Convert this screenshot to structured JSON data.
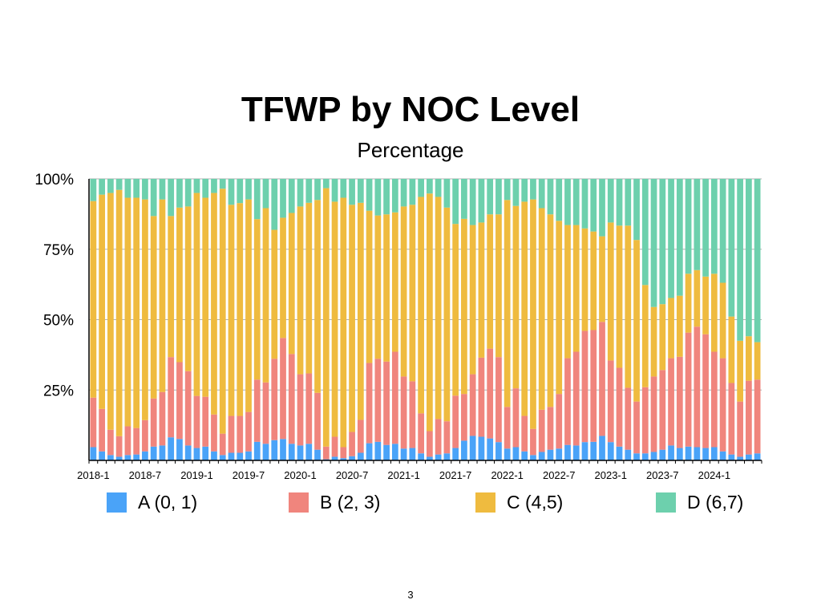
{
  "chart_data": {
    "type": "bar",
    "stacked": true,
    "title": "TFWP by NOC Level",
    "subtitle": "Percentage",
    "xlabel": "",
    "ylabel": "",
    "ylim": [
      0,
      100
    ],
    "y_ticks": [
      "100%",
      "75%",
      "50%",
      "25%"
    ],
    "y_tick_values": [
      100,
      75,
      50,
      25
    ],
    "x_ticks": [
      "2018-1",
      "2018-7",
      "2019-1",
      "2019-7",
      "2020-1",
      "2020-7",
      "2021-1",
      "2021-7",
      "2022-1",
      "2022-7",
      "2023-1",
      "2023-7",
      "2024-1"
    ],
    "x_tick_every": 6,
    "grid": true,
    "legend_position": "bottom",
    "categories": [
      "2018-1",
      "2018-2",
      "2018-3",
      "2018-4",
      "2018-5",
      "2018-6",
      "2018-7",
      "2018-8",
      "2018-9",
      "2018-10",
      "2018-11",
      "2018-12",
      "2019-1",
      "2019-2",
      "2019-3",
      "2019-4",
      "2019-5",
      "2019-6",
      "2019-7",
      "2019-8",
      "2019-9",
      "2019-10",
      "2019-11",
      "2019-12",
      "2020-1",
      "2020-2",
      "2020-3",
      "2020-4",
      "2020-5",
      "2020-6",
      "2020-7",
      "2020-8",
      "2020-9",
      "2020-10",
      "2020-11",
      "2020-12",
      "2021-1",
      "2021-2",
      "2021-3",
      "2021-4",
      "2021-5",
      "2021-6",
      "2021-7",
      "2021-8",
      "2021-9",
      "2021-10",
      "2021-11",
      "2021-12",
      "2022-1",
      "2022-2",
      "2022-3",
      "2022-4",
      "2022-5",
      "2022-6",
      "2022-7",
      "2022-8",
      "2022-9",
      "2022-10",
      "2022-11",
      "2022-12",
      "2023-1",
      "2023-2",
      "2023-3",
      "2023-4",
      "2023-5",
      "2023-6",
      "2023-7",
      "2023-8",
      "2023-9",
      "2023-10",
      "2023-11",
      "2023-12",
      "2024-1",
      "2024-2",
      "2024-3",
      "2024-4",
      "2024-5",
      "2024-6"
    ],
    "series": [
      {
        "name": "A (0, 1)",
        "color": "#4aa3f8",
        "values": [
          4.7,
          3.2,
          1.9,
          1.3,
          1.9,
          2.1,
          3.2,
          4.9,
          5.3,
          8.2,
          7.6,
          5.3,
          4.4,
          4.9,
          3.2,
          1.9,
          2.7,
          2.7,
          3.2,
          6.6,
          5.9,
          7.2,
          7.6,
          5.9,
          5.3,
          5.9,
          3.8,
          0.4,
          1.3,
          0.8,
          1.5,
          2.7,
          6.1,
          6.6,
          5.5,
          5.9,
          4.2,
          4.4,
          2.5,
          1.3,
          2.1,
          2.5,
          4.4,
          7.0,
          8.7,
          8.4,
          7.8,
          6.5,
          4.2,
          4.7,
          3.2,
          1.9,
          3.0,
          3.8,
          4.2,
          5.5,
          5.3,
          6.5,
          6.6,
          8.7,
          6.5,
          4.9,
          3.8,
          2.5,
          2.5,
          3.0,
          3.8,
          5.3,
          4.4,
          4.9,
          4.7,
          4.4,
          4.7,
          3.2,
          2.1,
          1.3,
          2.1,
          2.5
        ]
      },
      {
        "name": "B (2, 3)",
        "color": "#f0857d",
        "values": [
          17.6,
          15.1,
          9.0,
          7.3,
          10.2,
          9.4,
          11.1,
          17.1,
          19.0,
          28.5,
          27.3,
          26.4,
          18.5,
          17.7,
          13.1,
          7.6,
          13.1,
          13.1,
          14.0,
          22.1,
          21.8,
          28.9,
          35.9,
          31.9,
          25.3,
          25.0,
          20.2,
          4.5,
          7.1,
          3.9,
          8.6,
          11.7,
          28.5,
          29.5,
          29.6,
          32.7,
          25.6,
          23.7,
          14.2,
          9.1,
          12.6,
          11.4,
          18.6,
          16.6,
          21.9,
          28.1,
          31.9,
          30.2,
          14.8,
          20.9,
          12.6,
          9.3,
          15.0,
          15.2,
          19.4,
          30.8,
          33.3,
          39.5,
          39.7,
          40.5,
          29.0,
          28.0,
          22.0,
          18.4,
          23.5,
          26.8,
          28.3,
          31.0,
          32.4,
          40.5,
          42.8,
          40.4,
          33.9,
          33.1,
          25.4,
          19.6,
          26.2,
          26.2
        ]
      },
      {
        "name": "C (4,5)",
        "color": "#efbb3f",
        "values": [
          69.8,
          76.1,
          84.1,
          87.5,
          81.2,
          81.8,
          78.4,
          64.8,
          68.4,
          50.1,
          54.9,
          58.5,
          72.1,
          70.7,
          78.7,
          87.0,
          75.0,
          75.6,
          75.5,
          57.0,
          61.9,
          45.8,
          42.7,
          50.1,
          59.6,
          60.6,
          68.5,
          91.8,
          83.5,
          88.6,
          80.7,
          77.1,
          54.1,
          50.9,
          52.3,
          49.5,
          60.4,
          62.7,
          76.9,
          84.4,
          78.9,
          75.9,
          61.0,
          62.2,
          53.0,
          48.0,
          47.7,
          50.7,
          73.5,
          64.8,
          76.1,
          81.5,
          71.6,
          68.4,
          61.5,
          47.3,
          45.0,
          36.4,
          35.0,
          30.4,
          49.0,
          50.5,
          57.6,
          57.4,
          36.3,
          24.7,
          23.4,
          21.4,
          21.7,
          20.9,
          20.1,
          20.5,
          27.7,
          26.8,
          23.6,
          21.6,
          15.8,
          13.3
        ]
      },
      {
        "name": "D (6,7)",
        "color": "#6dd0ad",
        "values": [
          7.9,
          5.6,
          5.0,
          3.9,
          6.7,
          6.7,
          7.3,
          13.2,
          7.3,
          13.2,
          10.2,
          9.8,
          5.0,
          6.7,
          5.0,
          3.5,
          9.2,
          8.6,
          7.3,
          14.3,
          10.4,
          18.1,
          13.8,
          12.1,
          9.8,
          8.5,
          7.5,
          3.3,
          8.1,
          6.7,
          9.2,
          8.5,
          11.3,
          13.0,
          12.6,
          11.9,
          9.8,
          9.2,
          6.4,
          5.2,
          6.4,
          10.2,
          16.0,
          14.2,
          16.4,
          15.5,
          12.6,
          12.6,
          7.5,
          9.6,
          8.1,
          7.3,
          10.4,
          12.6,
          14.9,
          16.4,
          16.4,
          17.6,
          18.7,
          20.4,
          15.5,
          16.6,
          16.6,
          21.7,
          37.7,
          45.5,
          44.5,
          42.3,
          41.5,
          33.7,
          32.4,
          34.7,
          33.7,
          36.9,
          48.9,
          57.5,
          55.9,
          58.0
        ]
      }
    ]
  },
  "page_number": "3"
}
